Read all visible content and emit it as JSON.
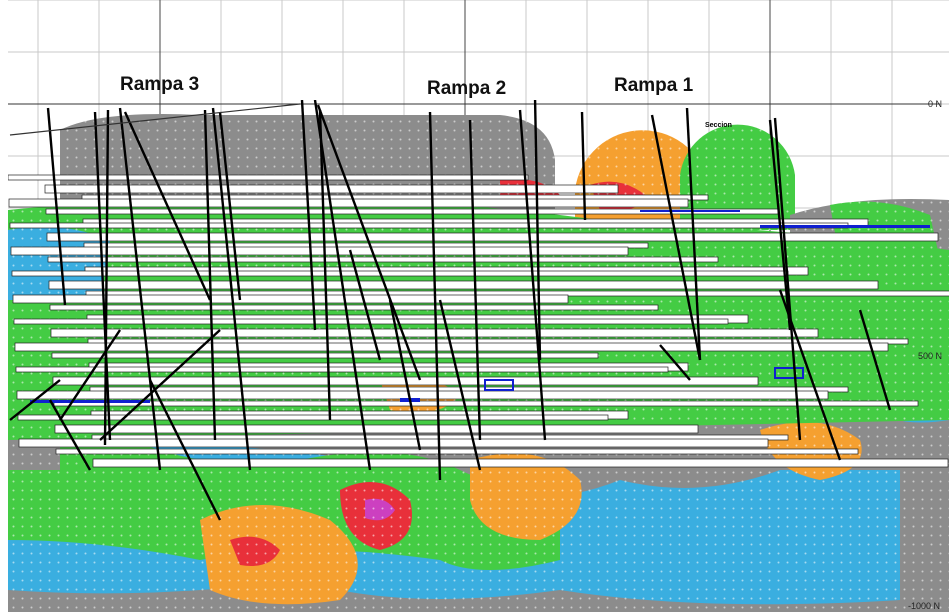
{
  "labels": {
    "ramps": [
      "Rampa 3",
      "Rampa 2",
      "Rampa 1"
    ],
    "section": "Seccion"
  },
  "axis": {
    "levels": [
      "0 N",
      "500 N",
      "-1000 N"
    ]
  }
}
